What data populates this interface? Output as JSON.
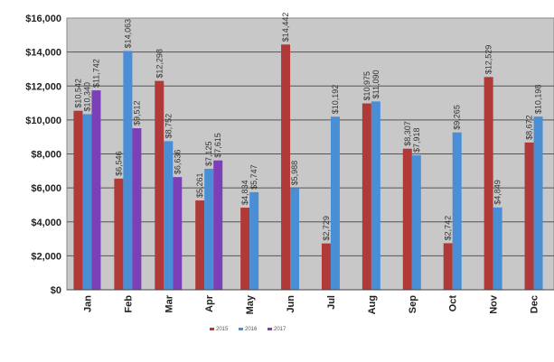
{
  "chart_data": {
    "type": "bar",
    "title": "",
    "xlabel": "",
    "ylabel": "",
    "categories": [
      "Jan",
      "Feb",
      "Mar",
      "Apr",
      "May",
      "Jun",
      "Jul",
      "Aug",
      "Sep",
      "Oct",
      "Nov",
      "Dec"
    ],
    "ylim": [
      0,
      16000
    ],
    "yticks": [
      "$0",
      "$2,000",
      "$4,000",
      "$6,000",
      "$8,000",
      "$10,000",
      "$12,000",
      "$14,000",
      "$16,000"
    ],
    "grid": true,
    "legend_position": "bottom",
    "series": [
      {
        "name": "2015",
        "color": "#b03a38",
        "values": [
          10542,
          6546,
          12298,
          5261,
          4834,
          14442,
          2729,
          10975,
          8307,
          2742,
          12529,
          8672
        ],
        "labels": [
          "$10,542",
          "$6,546",
          "$12,298",
          "$5,261",
          "$4,834",
          "$14,442",
          "$2,729",
          "$10,975",
          "$8,307",
          "$2,742",
          "$12,529",
          "$8,672"
        ]
      },
      {
        "name": "2016",
        "color": "#4a8fd6",
        "values": [
          10340,
          14063,
          8752,
          7125,
          5747,
          5988,
          10192,
          11090,
          7918,
          9265,
          4849,
          10198
        ],
        "labels": [
          "$10,340",
          "$14,063",
          "$8,752",
          "$7,125",
          "$5,747",
          "$5,988",
          "$10,192",
          "$11,090",
          "$7,918",
          "$9,265",
          "$4,849",
          "$10,198"
        ]
      },
      {
        "name": "2017",
        "color": "#7b3fb8",
        "values": [
          11742,
          9512,
          6636,
          7615,
          null,
          null,
          null,
          null,
          null,
          null,
          null,
          null
        ],
        "labels": [
          "$11,742",
          "$9,512",
          "$6,636",
          "$7,615",
          null,
          null,
          null,
          null,
          null,
          null,
          null,
          null
        ]
      }
    ]
  }
}
